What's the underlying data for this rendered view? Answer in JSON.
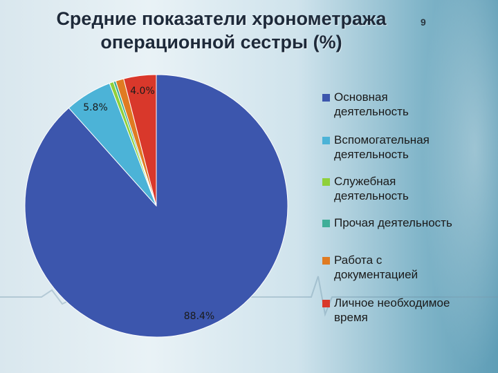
{
  "slide": {
    "title": "Средние показатели хронометража операционной сестры (%)",
    "slide_number": "9"
  },
  "chart_data": {
    "type": "pie",
    "categories": [
      "Основная деятельность",
      "Вспомогательная деятельность",
      "Служебная деятельность",
      "Прочая деятельность",
      "Работа с документацией",
      "Личное необходимое время"
    ],
    "values": [
      88.4,
      5.8,
      0.5,
      0.3,
      1.0,
      4.0
    ],
    "data_labels": [
      "88.4%",
      "5.8%",
      "",
      "",
      "",
      "4.0%"
    ],
    "colors": [
      "#3c56ad",
      "#4cb3d7",
      "#8fd03a",
      "#3fae98",
      "#e07b22",
      "#d9382b"
    ],
    "legend_position": "right"
  }
}
